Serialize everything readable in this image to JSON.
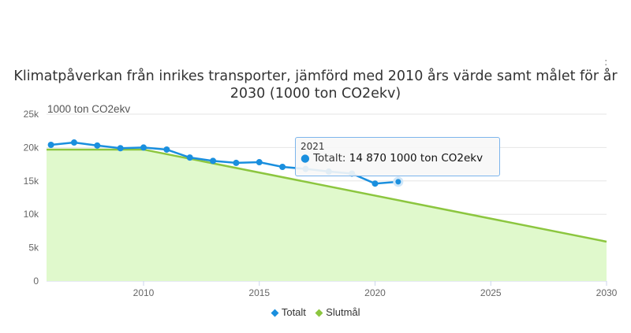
{
  "chart_data": {
    "type": "area",
    "title": "Klimatpåverkan från inrikes transporter, jämförd med 2010 års värde samt målet för år 2030 (1000 ton CO2ekv)",
    "ylabel": "1000 ton CO2ekv",
    "xlim": [
      2006,
      2030
    ],
    "ylim": [
      0,
      25000
    ],
    "xticks": [
      "2010",
      "2015",
      "2020",
      "2025",
      "2030"
    ],
    "yticks": [
      "0",
      "5k",
      "10k",
      "15k",
      "20k",
      "25k"
    ],
    "grid": true,
    "legend_position": "bottom",
    "series": [
      {
        "name": "Totalt",
        "type": "line",
        "color": "#1a8fde",
        "x": [
          2006,
          2007,
          2008,
          2009,
          2010,
          2011,
          2012,
          2013,
          2014,
          2015,
          2016,
          2017,
          2018,
          2019,
          2020,
          2021
        ],
        "values": [
          20400,
          20750,
          20300,
          19900,
          20000,
          19700,
          18500,
          18000,
          17700,
          17800,
          17100,
          16800,
          16400,
          16100,
          14600,
          14870
        ]
      },
      {
        "name": "Slutmål",
        "type": "area",
        "color": "#8cc63f",
        "fill": "#e0f9cc",
        "x": [
          2006,
          2010,
          2030
        ],
        "values": [
          19700,
          19700,
          5900
        ]
      }
    ]
  },
  "tooltip": {
    "year": "2021",
    "series": "Totalt:",
    "value": "14 870 1000 ton CO2ekv"
  },
  "menu_icon": ":"
}
